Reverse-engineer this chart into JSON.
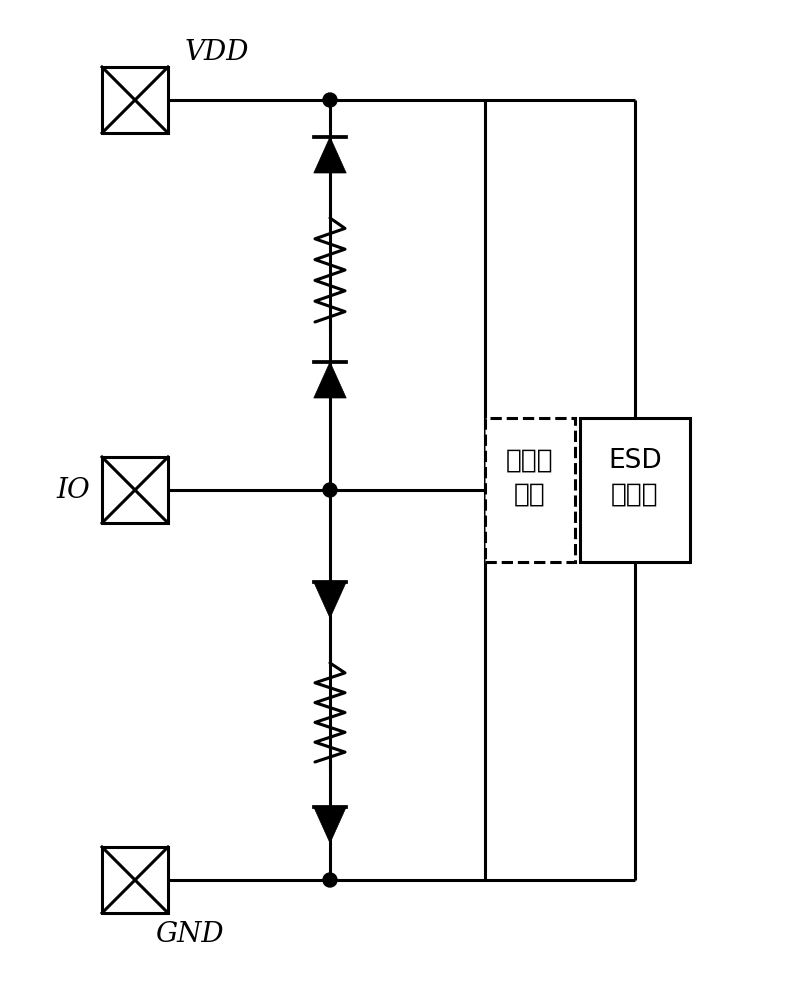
{
  "bg_color": "#ffffff",
  "line_color": "#000000",
  "line_width": 2.2,
  "vdd_label": "VDD",
  "gnd_label": "GND",
  "io_label": "IO",
  "protect_label": "待保护\n电路",
  "esd_label": "ESD\n主通路",
  "font_size_labels": 20,
  "font_size_box": 19
}
